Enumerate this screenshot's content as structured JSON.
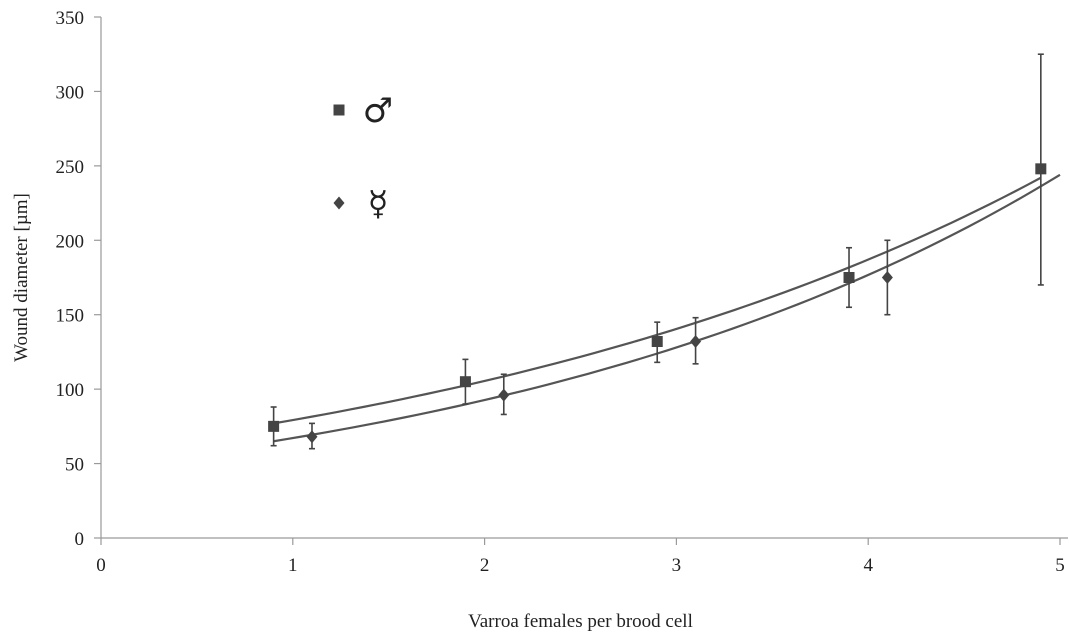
{
  "chart_data": {
    "type": "scatter",
    "title": "",
    "xlabel": "Varroa females per brood cell",
    "ylabel": "Wound diameter [µm]",
    "xlim": [
      0,
      5
    ],
    "ylim": [
      0,
      350
    ],
    "x_ticks": [
      "0",
      "1",
      "2",
      "3",
      "4",
      "5"
    ],
    "y_ticks": [
      "0",
      "50",
      "100",
      "150",
      "200",
      "250",
      "300",
      "350"
    ],
    "grid": false,
    "legend_position": "top-left",
    "series": [
      {
        "name": "♂",
        "marker": "square",
        "color": "#444444",
        "points": [
          {
            "x": 0.9,
            "y": 75,
            "err_low": 62,
            "err_high": 88
          },
          {
            "x": 1.9,
            "y": 105,
            "err_low": 90,
            "err_high": 120
          },
          {
            "x": 2.9,
            "y": 132,
            "err_low": 118,
            "err_high": 145
          },
          {
            "x": 3.9,
            "y": 175,
            "err_low": 155,
            "err_high": 195
          },
          {
            "x": 4.9,
            "y": 248,
            "err_low": 170,
            "err_high": 325
          }
        ],
        "fit": {
          "x_start": 0.9,
          "x_end": 4.9,
          "y_start": 77,
          "y_end": 242
        }
      },
      {
        "name": "☿",
        "marker": "diamond",
        "color": "#444444",
        "points": [
          {
            "x": 1.1,
            "y": 68,
            "err_low": 60,
            "err_high": 77
          },
          {
            "x": 2.1,
            "y": 96,
            "err_low": 83,
            "err_high": 110
          },
          {
            "x": 3.1,
            "y": 132,
            "err_low": 117,
            "err_high": 148
          },
          {
            "x": 4.1,
            "y": 175,
            "err_low": 150,
            "err_high": 200
          }
        ],
        "fit": {
          "x_start": 0.9,
          "x_end": 5.0,
          "y_start": 65,
          "y_end": 244
        }
      }
    ]
  }
}
